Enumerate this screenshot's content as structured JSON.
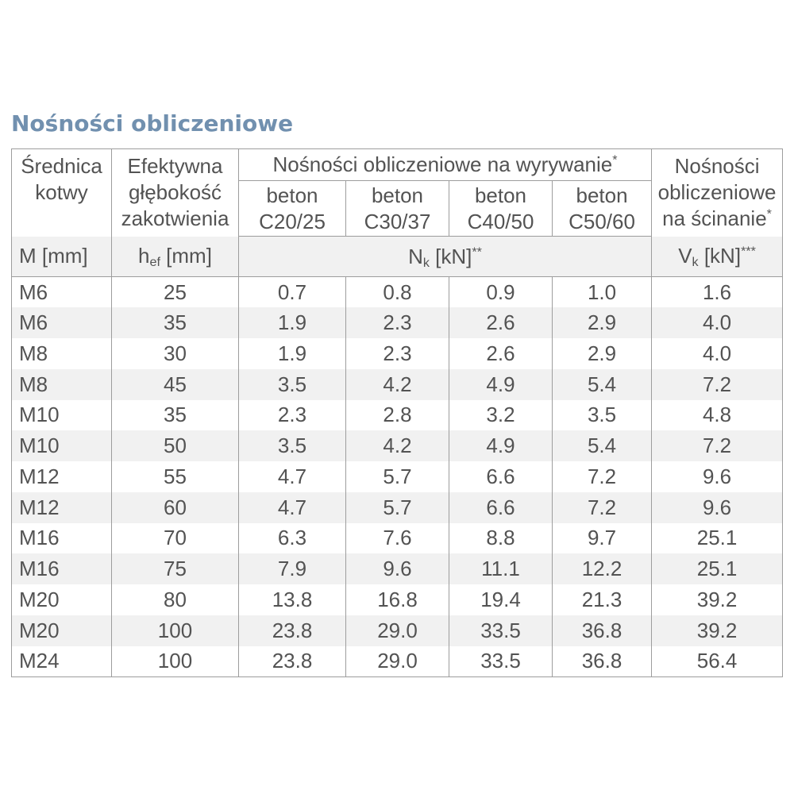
{
  "page": {
    "title": "Nośności obliczeniowe"
  },
  "colors": {
    "title_text": "#7190af",
    "table_border": "#9d9d9d",
    "row_stripe": "#f1f1f1",
    "body_text": "#535353",
    "background": "#ffffff"
  },
  "table": {
    "header": {
      "anchor_col": {
        "line1": "Średnica",
        "line2": "kotwy"
      },
      "depth_col": {
        "line1": "Efektywna",
        "line2": "głębokość",
        "line3": "zakotwienia"
      },
      "pullout_group": {
        "label": "Nośności obliczeniowe na wyrywanie",
        "sup": "*"
      },
      "beton_cols": [
        {
          "line1": "beton",
          "line2": "C20/25"
        },
        {
          "line1": "beton",
          "line2": "C30/37"
        },
        {
          "line1": "beton",
          "line2": "C40/50"
        },
        {
          "line1": "beton",
          "line2": "C50/60"
        }
      ],
      "shear_col": {
        "line1": "Nośności",
        "line2": "obliczeniowe",
        "line3": "na ścinanie",
        "sup": "*"
      },
      "units": {
        "anchor": "M [mm]",
        "depth": {
          "base": "h",
          "sub": "ef",
          "rest": " [mm]"
        },
        "nk": {
          "base": "N",
          "sub": "k",
          "rest": " [kN]",
          "sup": "**"
        },
        "vk": {
          "base": "V",
          "sub": "k",
          "rest": " [kN]",
          "sup": "***"
        }
      }
    },
    "rows": [
      [
        "M6",
        "25",
        "0.7",
        "0.8",
        "0.9",
        "1.0",
        "1.6"
      ],
      [
        "M6",
        "35",
        "1.9",
        "2.3",
        "2.6",
        "2.9",
        "4.0"
      ],
      [
        "M8",
        "30",
        "1.9",
        "2.3",
        "2.6",
        "2.9",
        "4.0"
      ],
      [
        "M8",
        "45",
        "3.5",
        "4.2",
        "4.9",
        "5.4",
        "7.2"
      ],
      [
        "M10",
        "35",
        "2.3",
        "2.8",
        "3.2",
        "3.5",
        "4.8"
      ],
      [
        "M10",
        "50",
        "3.5",
        "4.2",
        "4.9",
        "5.4",
        "7.2"
      ],
      [
        "M12",
        "55",
        "4.7",
        "5.7",
        "6.6",
        "7.2",
        "9.6"
      ],
      [
        "M12",
        "60",
        "4.7",
        "5.7",
        "6.6",
        "7.2",
        "9.6"
      ],
      [
        "M16",
        "70",
        "6.3",
        "7.6",
        "8.8",
        "9.7",
        "25.1"
      ],
      [
        "M16",
        "75",
        "7.9",
        "9.6",
        "11.1",
        "12.2",
        "25.1"
      ],
      [
        "M20",
        "80",
        "13.8",
        "16.8",
        "19.4",
        "21.3",
        "39.2"
      ],
      [
        "M20",
        "100",
        "23.8",
        "29.0",
        "33.5",
        "36.8",
        "39.2"
      ],
      [
        "M24",
        "100",
        "23.8",
        "29.0",
        "33.5",
        "36.8",
        "56.4"
      ]
    ],
    "cell_names": [
      "cell-anchor-size",
      "cell-effective-depth",
      "cell-nk-c20-25",
      "cell-nk-c30-37",
      "cell-nk-c40-50",
      "cell-nk-c50-60",
      "cell-vk-shear"
    ]
  }
}
